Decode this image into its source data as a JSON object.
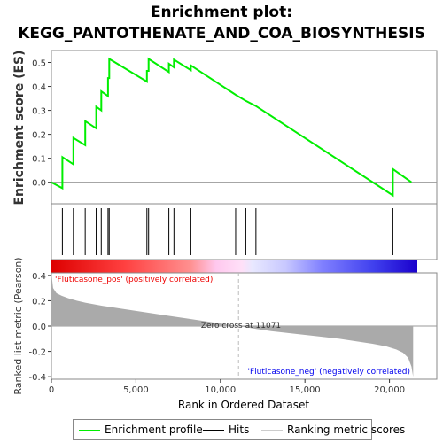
{
  "title_line1": "Enrichment plot:",
  "title_line2": "KEGG_PANTOTHENATE_AND_COA_BIOSYNTHESIS",
  "colors": {
    "es_line": "#00ee00",
    "hit_line": "#000000",
    "zero_line": "#999999",
    "ranked_fill": "#aaaaaa",
    "pos_label": "#ee0000",
    "neg_label": "#0000ee"
  },
  "chart_data": [
    {
      "type": "line",
      "name": "enrichment_profile",
      "ylabel": "Enrichment score (ES)",
      "ylim": [
        -0.09,
        0.55
      ],
      "yticks": [
        0.0,
        0.1,
        0.2,
        0.3,
        0.4,
        0.5
      ],
      "ytick_labels": [
        "0.0",
        "0.1",
        "0.2",
        "0.3",
        "0.4",
        "0.5"
      ],
      "xlim": [
        0,
        22800
      ],
      "grid": false,
      "series": [
        {
          "name": "Enrichment profile",
          "x": [
            0,
            650,
            650,
            1300,
            1300,
            2000,
            2000,
            2650,
            2650,
            2950,
            2950,
            3350,
            3350,
            3420,
            3420,
            5650,
            5650,
            5750,
            5750,
            6950,
            6950,
            7250,
            7250,
            8250,
            8250,
            10900,
            10900,
            11500,
            11500,
            12100,
            12100,
            20200,
            20200,
            21300
          ],
          "y": [
            0.0,
            -0.025,
            0.105,
            0.075,
            0.185,
            0.155,
            0.255,
            0.225,
            0.315,
            0.3,
            0.38,
            0.36,
            0.435,
            0.435,
            0.515,
            0.42,
            0.465,
            0.465,
            0.515,
            0.46,
            0.495,
            0.48,
            0.512,
            0.468,
            0.488,
            0.365,
            0.365,
            0.34,
            0.34,
            0.318,
            0.318,
            -0.055,
            0.055,
            0.0
          ]
        }
      ]
    },
    {
      "type": "hits",
      "name": "Hits",
      "x": [
        650,
        1300,
        2000,
        2650,
        2950,
        3350,
        3420,
        5650,
        5750,
        6950,
        7250,
        8250,
        10900,
        11500,
        12100,
        20200
      ]
    },
    {
      "type": "area",
      "name": "Ranking metric scores",
      "xlabel": "Rank in Ordered Dataset",
      "ylabel": "Ranked list metric (Pearson)",
      "xlim": [
        0,
        22800
      ],
      "ylim": [
        -0.42,
        0.42
      ],
      "xticks": [
        0,
        5000,
        10000,
        15000,
        20000
      ],
      "xtick_labels": [
        "0",
        "5,000",
        "10,000",
        "15,000",
        "20,000"
      ],
      "yticks": [
        -0.4,
        -0.2,
        0.0,
        0.2,
        0.4
      ],
      "ytick_labels": [
        "-0.4",
        "-0.2",
        "0.0",
        "0.2",
        "0.4"
      ],
      "zero_cross": 11071,
      "zero_cross_label": "Zero cross at 11071",
      "pos_label": "'Fluticasone_pos' (positively correlated)",
      "neg_label": "'Fluticasone_neg' (negatively correlated)",
      "series": [
        {
          "name": "Ranking metric scores",
          "x": [
            0,
            100,
            300,
            600,
            1000,
            1500,
            2000,
            3000,
            4000,
            5000,
            6000,
            7000,
            8000,
            9000,
            10000,
            11071,
            12000,
            13000,
            14000,
            15000,
            16000,
            17000,
            18000,
            19000,
            19800,
            20400,
            20800,
            21100,
            21300,
            21400
          ],
          "y": [
            0.42,
            0.3,
            0.26,
            0.24,
            0.22,
            0.2,
            0.185,
            0.16,
            0.14,
            0.12,
            0.1,
            0.08,
            0.06,
            0.04,
            0.02,
            0.0,
            -0.02,
            -0.04,
            -0.055,
            -0.07,
            -0.085,
            -0.1,
            -0.12,
            -0.14,
            -0.16,
            -0.185,
            -0.21,
            -0.25,
            -0.32,
            -0.4
          ]
        }
      ]
    }
  ],
  "legend": {
    "items": [
      "Enrichment profile",
      "Hits",
      "Ranking metric scores"
    ]
  }
}
